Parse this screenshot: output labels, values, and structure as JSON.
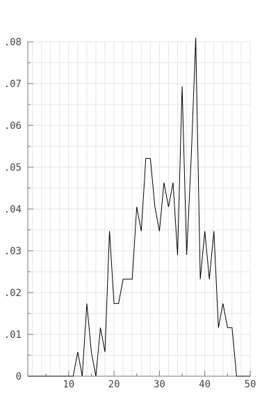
{
  "chart_data": {
    "type": "line",
    "title": "",
    "xlabel": "",
    "ylabel": "",
    "xlim": [
      1,
      50
    ],
    "ylim": [
      0,
      0.08
    ],
    "grid": true,
    "legend": "none",
    "x_ticks": [
      10,
      20,
      30,
      40,
      50
    ],
    "x_tick_labels": [
      "10",
      "20",
      "30",
      "40",
      "50"
    ],
    "y_ticks": [
      0,
      0.01,
      0.02,
      0.03,
      0.04,
      0.05,
      0.06,
      0.07,
      0.08
    ],
    "y_tick_labels": [
      "0",
      ".01",
      ".02",
      ".03",
      ".04",
      ".05",
      ".06",
      ".07",
      ".08"
    ],
    "colors": {
      "line": "#000000",
      "grid": "#e6e6e6",
      "axis": "#777777"
    },
    "series": [
      {
        "x": [
          1,
          2,
          3,
          4,
          5,
          6,
          7,
          8,
          9,
          10,
          11,
          12,
          13,
          14,
          15,
          16,
          17,
          18,
          19,
          20,
          21,
          22,
          23,
          24,
          25,
          26,
          27,
          28,
          29,
          30,
          31,
          32,
          33,
          34,
          35,
          36,
          37,
          38,
          39,
          40,
          41,
          42,
          43,
          44,
          45,
          46,
          47,
          48,
          49,
          50
        ],
        "values": [
          0,
          0,
          0,
          0,
          0,
          0,
          0,
          0,
          0,
          0,
          0,
          0.0058,
          0,
          0.0174,
          0.0058,
          0,
          0.0116,
          0.0058,
          0.0347,
          0.0174,
          0.0174,
          0.0232,
          0.0232,
          0.0232,
          0.0405,
          0.0347,
          0.0521,
          0.0521,
          0.0405,
          0.0347,
          0.0463,
          0.0405,
          0.0463,
          0.029,
          0.0694,
          0.029,
          0.0521,
          0.081,
          0.0232,
          0.0347,
          0.0232,
          0.0347,
          0.0116,
          0.0174,
          0.0116,
          0.0116,
          0,
          0,
          0,
          0
        ]
      }
    ]
  }
}
